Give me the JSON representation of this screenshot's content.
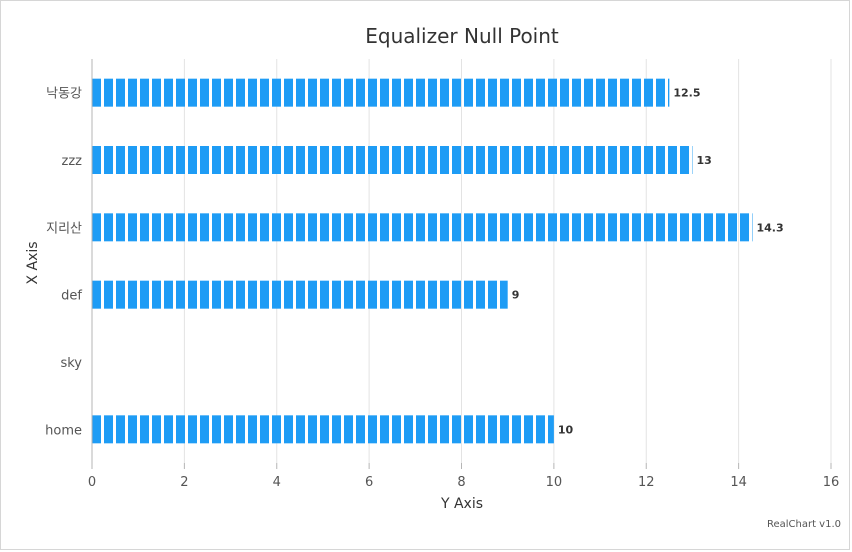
{
  "chart_data": {
    "type": "bar",
    "orientation": "horizontal",
    "title": "Equalizer Null Point",
    "xlabel": "X Axis",
    "ylabel": "Y Axis",
    "categories": [
      "낙동강",
      "zzz",
      "지리산",
      "def",
      "sky",
      "home"
    ],
    "values": [
      12.5,
      13,
      14.3,
      9,
      null,
      10
    ],
    "value_labels": [
      "12.5",
      "13",
      "14.3",
      "9",
      "",
      "10"
    ],
    "value_axis": {
      "min": 0,
      "max": 16,
      "ticks": [
        "0",
        "2",
        "4",
        "6",
        "8",
        "10",
        "12",
        "14",
        "16"
      ]
    },
    "grid": true,
    "style": "equalizer",
    "bar_color": "#1e9cf5",
    "grid_color": "#e3e3e3"
  },
  "credit": "RealChart v1.0"
}
